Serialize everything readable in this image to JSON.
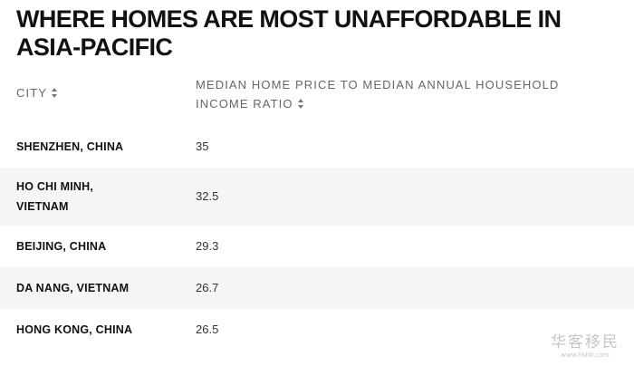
{
  "title": "WHERE HOMES ARE MOST UNAFFORDABLE IN ASIA-PACIFIC",
  "table": {
    "columns": [
      {
        "label": "CITY",
        "sortable": true,
        "icon": "sort-icon"
      },
      {
        "label": "MEDIAN HOME PRICE TO MEDIAN ANNUAL HOUSEHOLD INCOME RATIO",
        "sortable": true,
        "icon": "sort-icon"
      }
    ],
    "rows": [
      {
        "city": "SHENZHEN, CHINA",
        "ratio": "35"
      },
      {
        "city": "HO CHI MINH, VIETNAM",
        "ratio": "32.5"
      },
      {
        "city": "BEIJING, CHINA",
        "ratio": "29.3"
      },
      {
        "city": "DA NANG, VIETNAM",
        "ratio": "26.7"
      },
      {
        "city": "HONG KONG, CHINA",
        "ratio": "26.5"
      }
    ]
  },
  "watermark": {
    "main": "华客移民",
    "sub": "www.hkhb.com"
  },
  "colors": {
    "text": "#111111",
    "header_text": "#666666",
    "alt_row_bg": "#f5f5f5",
    "background": "#ffffff"
  }
}
